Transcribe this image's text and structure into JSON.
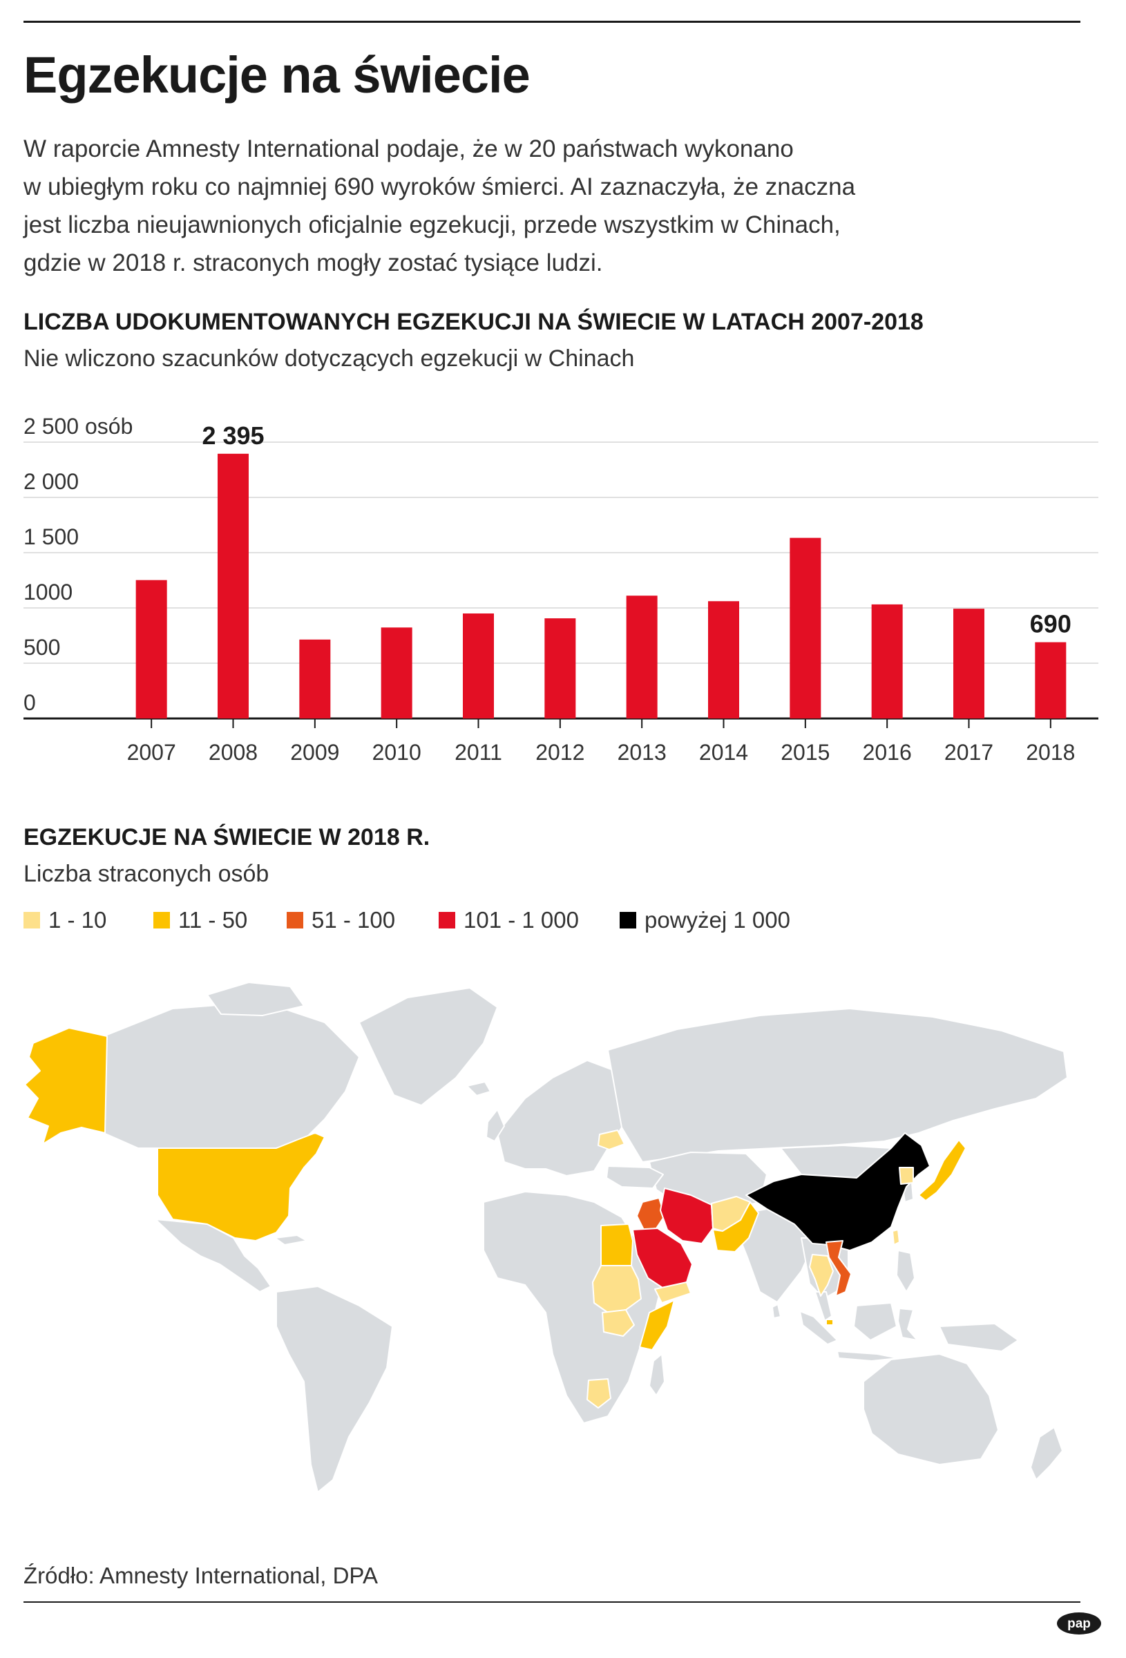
{
  "header": {
    "title": "Egzekucje na świecie",
    "intro_lines": [
      "W raporcie Amnesty International podaje, że w 20 państwach wykonano",
      "w ubiegłym roku co najmniej 690 wyroków śmierci. AI zaznaczyła, że znaczna",
      "jest liczba nieujawnionych oficjalnie egzekucji, przede wszystkim w Chinach,",
      "gdzie w 2018 r. straconych mogły zostać tysiące ludzi."
    ]
  },
  "chart_data": {
    "type": "bar",
    "title": "LICZBA UDOKUMENTOWANYCH EGZEKUCJI NA ŚWIECIE W LATACH 2007-2018",
    "subtitle": "Nie wliczono szacunków dotyczących egzekucji w Chinach",
    "categories": [
      "2007",
      "2008",
      "2009",
      "2010",
      "2011",
      "2012",
      "2013",
      "2014",
      "2015",
      "2016",
      "2017",
      "2018"
    ],
    "values": [
      1252,
      2395,
      714,
      823,
      950,
      906,
      1111,
      1061,
      1634,
      1032,
      993,
      690
    ],
    "ylim": [
      0,
      2500
    ],
    "y_ticks": [
      {
        "value": 0,
        "label": "0"
      },
      {
        "value": 500,
        "label": "500"
      },
      {
        "value": 1000,
        "label": "1000"
      },
      {
        "value": 1500,
        "label": "1 500"
      },
      {
        "value": 2000,
        "label": "2 000"
      },
      {
        "value": 2500,
        "label": "2 500 osób"
      }
    ],
    "data_labels": [
      {
        "category": "2008",
        "label": "2 395"
      },
      {
        "category": "2018",
        "label": "690"
      }
    ],
    "bar_color": "#e30f24",
    "grid": true
  },
  "map": {
    "title": "EGZEKUCJE NA ŚWIECIE W 2018 R.",
    "subtitle": "Liczba straconych osób",
    "legend": [
      {
        "label": "1 - 10",
        "color": "#fde08a"
      },
      {
        "label": "11 - 50",
        "color": "#fcc200"
      },
      {
        "label": "51 - 100",
        "color": "#e8591a"
      },
      {
        "label": "101 - 1 000",
        "color": "#e30f24"
      },
      {
        "label": "powyżej 1 000",
        "color": "#000000"
      }
    ],
    "base_color": "#d9dcdf",
    "countries": [
      {
        "name": "USA",
        "category": "11 - 50"
      },
      {
        "name": "Białoruś",
        "category": "1 - 10"
      },
      {
        "name": "Egipt",
        "category": "11 - 50"
      },
      {
        "name": "Sudan",
        "category": "1 - 10"
      },
      {
        "name": "Sudan Południowy",
        "category": "1 - 10"
      },
      {
        "name": "Somalia",
        "category": "11 - 50"
      },
      {
        "name": "Botswana",
        "category": "1 - 10"
      },
      {
        "name": "Arabia Saudyjska",
        "category": "101 - 1 000"
      },
      {
        "name": "Iran",
        "category": "101 - 1 000"
      },
      {
        "name": "Irak",
        "category": "51 - 100"
      },
      {
        "name": "Jemen",
        "category": "1 - 10"
      },
      {
        "name": "Afganistan",
        "category": "1 - 10"
      },
      {
        "name": "Pakistan",
        "category": "11 - 50"
      },
      {
        "name": "Chiny",
        "category": "powyżej 1 000"
      },
      {
        "name": "Korea Północna",
        "category": "1 - 10"
      },
      {
        "name": "Japonia",
        "category": "11 - 50"
      },
      {
        "name": "Wietnam",
        "category": "51 - 100"
      },
      {
        "name": "Tajlandia",
        "category": "1 - 10"
      },
      {
        "name": "Singapur",
        "category": "11 - 50"
      },
      {
        "name": "Tajwan",
        "category": "1 - 10"
      }
    ]
  },
  "footer": {
    "source": "Źródło: Amnesty International, DPA",
    "logo": "pap"
  }
}
